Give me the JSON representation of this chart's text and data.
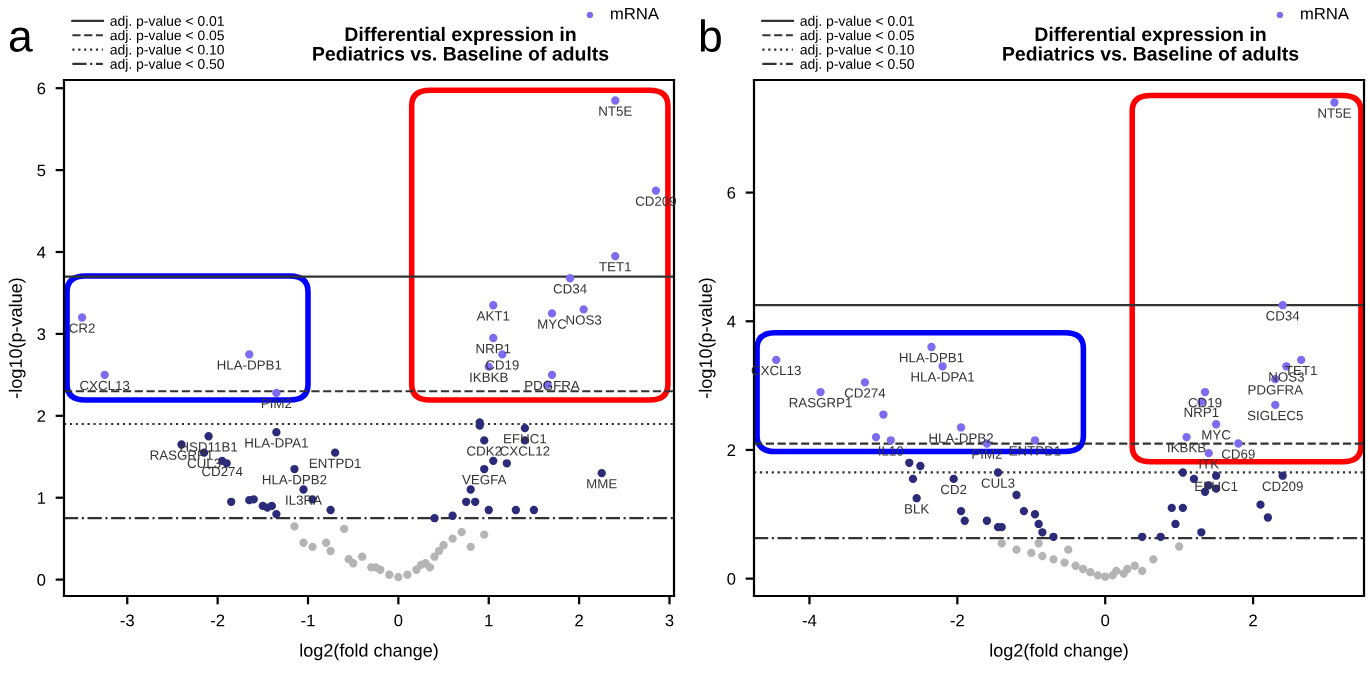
{
  "chart_data": [
    {
      "type": "scatter",
      "title": "Differential expression in\nPediatrics vs. Baseline of adults",
      "xlabel": "log2(fold change)",
      "ylabel": "-log10(p-value)",
      "xlim": [
        -3.7,
        3.05
      ],
      "ylim": [
        -0.2,
        6.1
      ],
      "xticks": [
        -3,
        -2,
        -1,
        0,
        1,
        2,
        3
      ],
      "yticks": [
        0,
        1,
        2,
        3,
        4,
        5,
        6
      ],
      "marker": "circle",
      "legend": "top right",
      "grid": false,
      "ref_lines": [
        {
          "axis": "y",
          "value": 3.7,
          "label": "adj. p-value < 0.01",
          "line_style": "solid"
        },
        {
          "axis": "y",
          "value": 2.3,
          "label": "adj. p-value < 0.05",
          "line_style": "dashed"
        },
        {
          "axis": "y",
          "value": 1.9,
          "label": "adj. p-value < 0.10",
          "line_style": "dotted"
        },
        {
          "axis": "y",
          "value": 0.75,
          "label": "adj. p-value < 0.50",
          "line_style": "dashdot"
        }
      ],
      "series": [
        {
          "name": "mRNA",
          "color": "#7b6cf0",
          "x": [
            2.4,
            2.85,
            2.4,
            1.9,
            1.05,
            1.7,
            2.05,
            -3.5,
            1.05,
            1.15,
            1.0,
            1.7,
            1.65,
            -1.65,
            -3.25,
            -1.35
          ],
          "values": [
            5.85,
            4.75,
            3.95,
            3.68,
            3.35,
            3.25,
            3.3,
            3.2,
            2.95,
            2.75,
            2.6,
            2.5,
            2.38,
            2.75,
            2.5,
            2.28
          ]
        },
        {
          "color": "#2b2b7a",
          "x": [
            -2.1,
            -2.4,
            -2.15,
            -1.95,
            -1.9,
            -1.35,
            -0.7,
            -1.15,
            -1.05,
            -0.95,
            1.4,
            0.95,
            1.4,
            0.9,
            0.9,
            1.05,
            1.2,
            2.25,
            0.95,
            0.8,
            0.75,
            0.85,
            1.0,
            1.3,
            1.5,
            0.6,
            0.4,
            -0.75,
            -1.4,
            -1.5,
            -1.65,
            -1.85,
            -1.6,
            -1.45,
            -1.35
          ],
          "values": [
            1.75,
            1.65,
            1.55,
            1.45,
            1.42,
            1.8,
            1.55,
            1.35,
            1.1,
            0.98,
            1.85,
            1.7,
            1.7,
            1.92,
            1.88,
            1.45,
            1.42,
            1.3,
            1.35,
            1.1,
            0.95,
            0.95,
            0.85,
            0.85,
            0.85,
            0.78,
            0.75,
            0.85,
            0.9,
            0.9,
            0.97,
            0.95,
            0.98,
            0.88,
            0.8
          ]
        },
        {
          "color": "#b4b4b4",
          "x": [
            -1.15,
            -1.05,
            -0.8,
            -0.75,
            -0.55,
            -0.5,
            -0.4,
            -0.3,
            -0.2,
            -0.1,
            0,
            0.1,
            0.2,
            0.3,
            0.4,
            0.45,
            0.5,
            0.6,
            0.7,
            0.8,
            0.95,
            -0.95,
            -0.6,
            0.25,
            0.35,
            -0.25
          ],
          "values": [
            0.65,
            0.45,
            0.45,
            0.35,
            0.25,
            0.2,
            0.28,
            0.15,
            0.12,
            0.06,
            0.03,
            0.06,
            0.12,
            0.2,
            0.28,
            0.35,
            0.42,
            0.5,
            0.58,
            0.4,
            0.55,
            0.4,
            0.62,
            0.18,
            0.15,
            0.15
          ]
        }
      ],
      "annotations": [
        "a",
        {
          "text": "NT5E",
          "x": 2.4,
          "y": 5.85
        },
        {
          "text": "CD209",
          "x": 2.85,
          "y": 4.75
        },
        {
          "text": "TET1",
          "x": 2.4,
          "y": 3.95
        },
        {
          "text": "CD34",
          "x": 1.9,
          "y": 3.68
        },
        {
          "text": "AKT1",
          "x": 1.05,
          "y": 3.35
        },
        {
          "text": "MYC",
          "x": 1.7,
          "y": 3.25
        },
        {
          "text": "NOS3",
          "x": 2.05,
          "y": 3.3
        },
        {
          "text": "CR2",
          "x": -3.5,
          "y": 3.2
        },
        {
          "text": "NRP1",
          "x": 1.05,
          "y": 2.95
        },
        {
          "text": "CD19",
          "x": 1.15,
          "y": 2.75
        },
        {
          "text": "IKBKB",
          "x": 1.0,
          "y": 2.6
        },
        {
          "text": "PDGFRA",
          "x": 1.7,
          "y": 2.5
        },
        {
          "text": "HLA-DPB1",
          "x": -1.65,
          "y": 2.75
        },
        {
          "text": "CXCL13",
          "x": -3.25,
          "y": 2.5
        },
        {
          "text": "PIM2",
          "x": -1.35,
          "y": 2.28
        },
        {
          "text": "HSD11B1",
          "x": -2.1,
          "y": 1.75
        },
        {
          "text": "RASGRP1",
          "x": -2.4,
          "y": 1.65
        },
        {
          "text": "CUL3",
          "x": -2.15,
          "y": 1.55
        },
        {
          "text": "CD274",
          "x": -1.95,
          "y": 1.45
        },
        {
          "text": "HLA-DPA1",
          "x": -1.35,
          "y": 1.8
        },
        {
          "text": "ENTPD1",
          "x": -0.7,
          "y": 1.55
        },
        {
          "text": "HLA-DPB2",
          "x": -1.15,
          "y": 1.35
        },
        {
          "text": "IL3RA",
          "x": -1.05,
          "y": 1.1
        },
        {
          "text": "EFHC1",
          "x": 1.4,
          "y": 1.85
        },
        {
          "text": "CDK2",
          "x": 0.95,
          "y": 1.7
        },
        {
          "text": "CXCL12",
          "x": 1.4,
          "y": 1.7
        },
        {
          "text": "VEGFA",
          "x": 0.95,
          "y": 1.35
        },
        {
          "text": "MME",
          "x": 2.25,
          "y": 1.3
        }
      ]
    },
    {
      "type": "scatter",
      "title": "Differential expression in\nPediatrics vs. Baseline of adults",
      "xlabel": "log2(fold change)",
      "ylabel": "-log10(p-value)",
      "xlim": [
        -4.75,
        3.5
      ],
      "ylim": [
        -0.27,
        7.75
      ],
      "xticks": [
        -4,
        -2,
        0,
        2
      ],
      "yticks": [
        0,
        2,
        4,
        6
      ],
      "marker": "circle",
      "legend": "top right",
      "grid": false,
      "ref_lines": [
        {
          "axis": "y",
          "value": 4.25,
          "label": "adj. p-value < 0.01",
          "line_style": "solid"
        },
        {
          "axis": "y",
          "value": 2.1,
          "label": "adj. p-value < 0.05",
          "line_style": "dashed"
        },
        {
          "axis": "y",
          "value": 1.65,
          "label": "adj. p-value < 0.10",
          "line_style": "dotted"
        },
        {
          "axis": "y",
          "value": 0.63,
          "label": "adj. p-value < 0.50",
          "line_style": "dashdot"
        }
      ],
      "series": [
        {
          "name": "mRNA",
          "color": "#7b6cf0",
          "x": [
            3.1,
            2.4,
            -4.45,
            -2.35,
            -2.2,
            -3.25,
            -3.85,
            -3.0,
            -3.1,
            -2.9,
            -1.95,
            -1.6,
            -0.95,
            2.65,
            2.45,
            2.3,
            1.35,
            1.3,
            2.3,
            1.5,
            1.1,
            1.8,
            1.4
          ],
          "values": [
            7.4,
            4.25,
            3.4,
            3.6,
            3.3,
            3.05,
            2.9,
            2.55,
            2.2,
            2.15,
            2.35,
            2.1,
            2.15,
            3.4,
            3.3,
            3.1,
            2.9,
            2.75,
            2.7,
            2.4,
            2.2,
            2.1,
            1.95
          ]
        },
        {
          "color": "#2b2b7a",
          "x": [
            -1.45,
            -2.05,
            -2.6,
            -2.55,
            2.4,
            1.5,
            -2.65,
            -2.5,
            1.05,
            1.2,
            1.35,
            1.4,
            1.5,
            -1.2,
            -1.95,
            -1.9,
            -1.6,
            -1.4,
            -1.1,
            -0.95,
            -0.9,
            -0.7,
            -1.45,
            0.5,
            0.9,
            1.05,
            0.95,
            1.3,
            2.1,
            2.2,
            -0.85,
            0.75
          ],
          "values": [
            1.65,
            1.55,
            1.55,
            1.25,
            1.6,
            1.6,
            1.8,
            1.75,
            1.65,
            1.55,
            1.35,
            1.45,
            1.4,
            1.3,
            1.05,
            0.9,
            0.9,
            0.8,
            1.05,
            1.0,
            0.85,
            0.65,
            0.8,
            0.65,
            1.1,
            1.1,
            0.85,
            0.72,
            1.15,
            0.95,
            0.72,
            0.65
          ]
        },
        {
          "color": "#b4b4b4",
          "x": [
            -1.4,
            -1.2,
            -1.0,
            -0.85,
            -0.7,
            -0.55,
            -0.4,
            -0.3,
            -0.2,
            -0.1,
            0,
            0.1,
            0.2,
            0.3,
            0.4,
            0.5,
            0.65,
            1.0,
            -0.9,
            -0.5,
            0.15,
            0.25
          ],
          "values": [
            0.55,
            0.45,
            0.4,
            0.35,
            0.3,
            0.25,
            0.2,
            0.15,
            0.1,
            0.05,
            0.03,
            0.05,
            null,
            0.15,
            0.2,
            0.12,
            0.3,
            0.5,
            0.55,
            0.45,
            0.12,
            0.08
          ]
        }
      ],
      "annotations": [
        "b",
        {
          "text": "NT5E",
          "x": 3.1,
          "y": 7.4
        },
        {
          "text": "CD34",
          "x": 2.4,
          "y": 4.25
        },
        {
          "text": "CXCL13",
          "x": -4.45,
          "y": 3.4
        },
        {
          "text": "HLA-DPB1",
          "x": -2.35,
          "y": 3.6
        },
        {
          "text": "HLA-DPA1",
          "x": -2.2,
          "y": 3.3
        },
        {
          "text": "CD274",
          "x": -3.25,
          "y": 3.05
        },
        {
          "text": "RASGRP1",
          "x": -3.85,
          "y": 2.9
        },
        {
          "text": "IL10",
          "x": -2.9,
          "y": 2.15
        },
        {
          "text": "HLA-DPB2",
          "x": -1.95,
          "y": 2.35
        },
        {
          "text": "PIM2",
          "x": -1.6,
          "y": 2.1
        },
        {
          "text": "ENTPD1",
          "x": -0.95,
          "y": 2.15
        },
        {
          "text": "TET1",
          "x": 2.65,
          "y": 3.4
        },
        {
          "text": "NOS3",
          "x": 2.45,
          "y": 3.3
        },
        {
          "text": "PDGFRA",
          "x": 2.3,
          "y": 3.1
        },
        {
          "text": "CD19",
          "x": 1.35,
          "y": 2.9
        },
        {
          "text": "NRP1",
          "x": 1.3,
          "y": 2.75
        },
        {
          "text": "SIGLEC5",
          "x": 2.3,
          "y": 2.7
        },
        {
          "text": "MYC",
          "x": 1.5,
          "y": 2.4
        },
        {
          "text": "IKBKB",
          "x": 1.1,
          "y": 2.2
        },
        {
          "text": "CD69",
          "x": 1.8,
          "y": 2.1
        },
        {
          "text": "ITK",
          "x": 1.4,
          "y": 1.95
        },
        {
          "text": "CUL3",
          "x": -1.45,
          "y": 1.65
        },
        {
          "text": "CD2",
          "x": -2.05,
          "y": 1.55
        },
        {
          "text": "BLK",
          "x": -2.55,
          "y": 1.25
        },
        {
          "text": "CD209",
          "x": 2.4,
          "y": 1.6
        },
        {
          "text": "EFHC1",
          "x": 1.5,
          "y": 1.6
        }
      ]
    }
  ]
}
